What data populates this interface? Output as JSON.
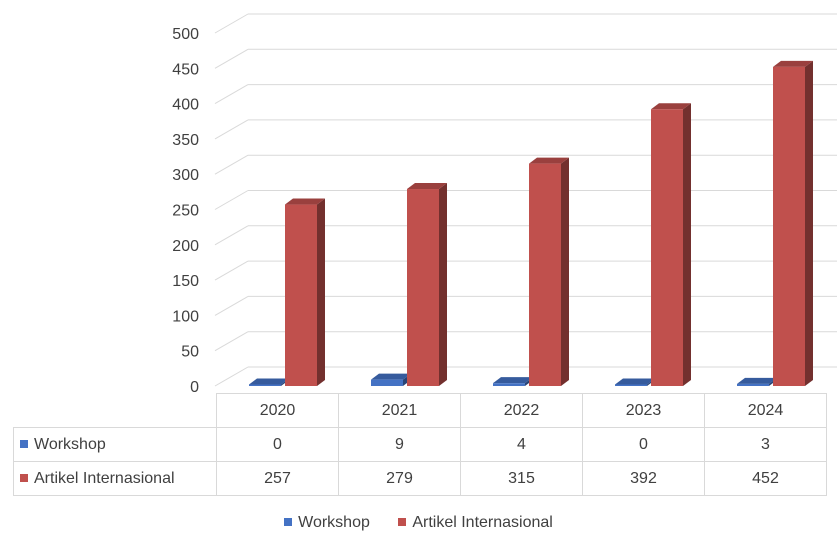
{
  "chart_data": {
    "type": "bar",
    "categories": [
      "2020",
      "2021",
      "2022",
      "2023",
      "2024"
    ],
    "series": [
      {
        "name": "Workshop",
        "values": [
          0,
          9,
          4,
          0,
          3
        ],
        "color": "#4472c4"
      },
      {
        "name": "Artikel Internasional",
        "values": [
          257,
          279,
          315,
          392,
          452
        ],
        "color": "#c0504d"
      }
    ],
    "yticks": [
      "0",
      "50",
      "100",
      "150",
      "200",
      "250",
      "300",
      "350",
      "400",
      "450",
      "500"
    ],
    "ylim": [
      0,
      500
    ],
    "grid": true,
    "legend": "bottom",
    "data_table": true
  }
}
